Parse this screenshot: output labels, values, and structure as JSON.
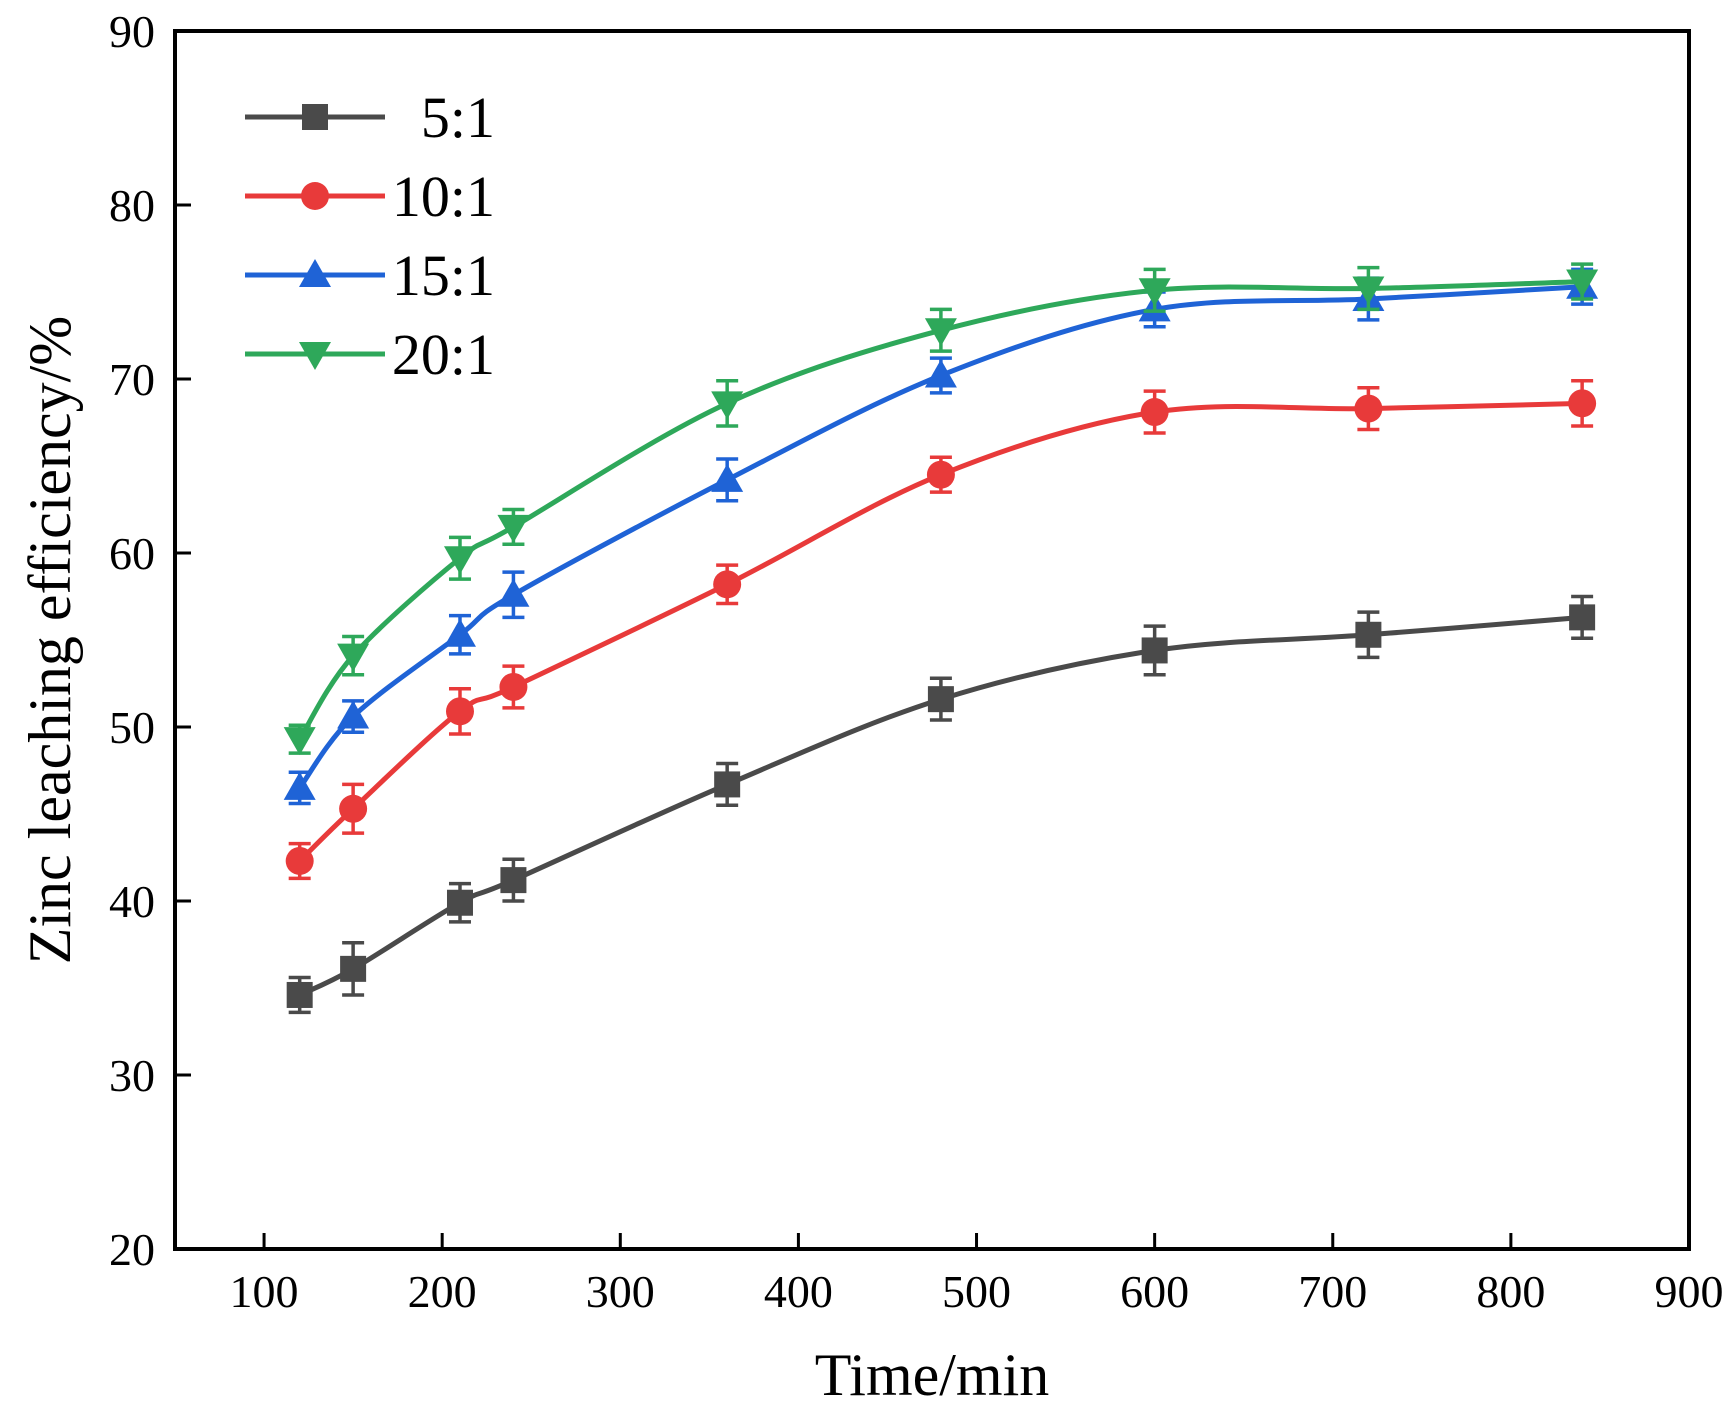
{
  "chart_data": {
    "type": "line",
    "title": "",
    "xlabel": "Time/min",
    "ylabel": "Zinc leaching efficiency/%",
    "xlim": [
      50,
      900
    ],
    "ylim": [
      20,
      90
    ],
    "xticks": [
      100,
      200,
      300,
      400,
      500,
      600,
      700,
      800,
      900
    ],
    "yticks": [
      20,
      30,
      40,
      50,
      60,
      70,
      80,
      90
    ],
    "grid": false,
    "legend_position": "top-left",
    "x": [
      120,
      150,
      210,
      240,
      360,
      480,
      600,
      720,
      840
    ],
    "series": [
      {
        "name": "5:1",
        "color": "#4a4a4a",
        "marker": "square",
        "values": [
          34.6,
          36.1,
          39.9,
          41.2,
          46.7,
          51.6,
          54.4,
          55.3,
          56.3
        ],
        "errors": [
          1.0,
          1.5,
          1.1,
          1.2,
          1.2,
          1.2,
          1.4,
          1.3,
          1.2
        ]
      },
      {
        "name": "10:1",
        "color": "#e83a3a",
        "marker": "circle",
        "values": [
          42.3,
          45.3,
          50.9,
          52.3,
          58.2,
          64.5,
          68.1,
          68.3,
          68.6
        ],
        "errors": [
          1.0,
          1.4,
          1.3,
          1.2,
          1.1,
          1.0,
          1.2,
          1.2,
          1.3
        ]
      },
      {
        "name": "15:1",
        "color": "#1f63d6",
        "marker": "triangle-up",
        "values": [
          46.5,
          50.6,
          55.3,
          57.6,
          64.2,
          70.2,
          74.0,
          74.6,
          75.3
        ],
        "errors": [
          0.9,
          0.9,
          1.1,
          1.3,
          1.2,
          1.0,
          1.0,
          1.2,
          1.0
        ]
      },
      {
        "name": "20:1",
        "color": "#2ea85a",
        "marker": "triangle-down",
        "values": [
          49.3,
          54.1,
          59.7,
          61.5,
          68.6,
          72.8,
          75.1,
          75.2,
          75.6
        ],
        "errors": [
          0.8,
          1.1,
          1.2,
          1.0,
          1.3,
          1.2,
          1.2,
          1.2,
          1.0
        ]
      }
    ]
  }
}
